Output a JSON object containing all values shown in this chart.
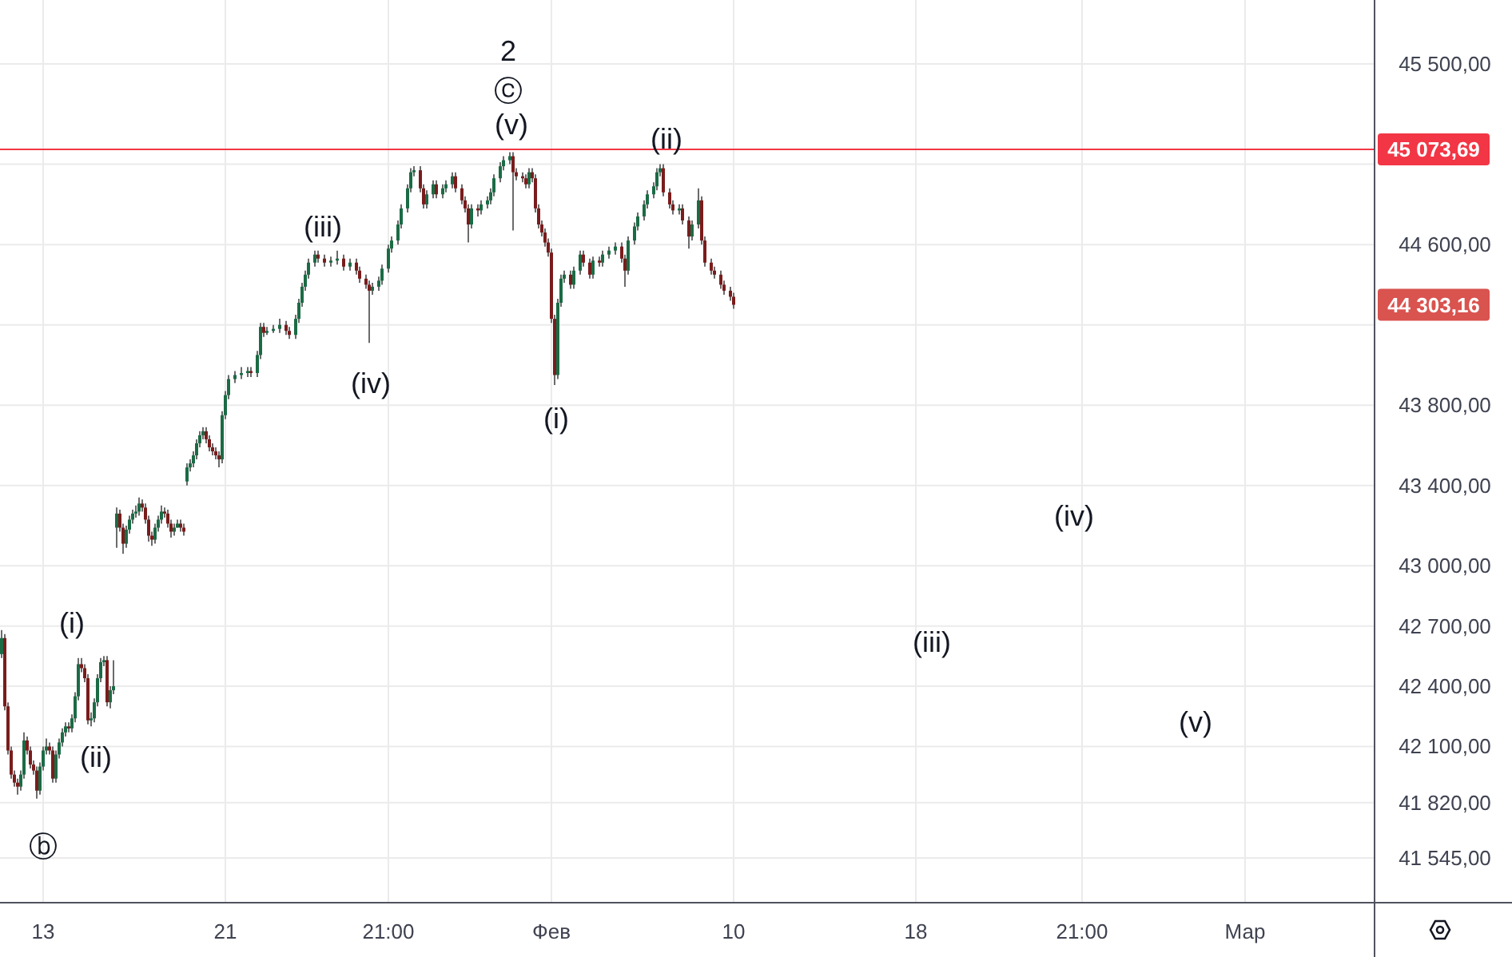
{
  "chart_data": {
    "type": "candlestick",
    "categories": [
      null,
      null,
      null,
      null,
      null,
      null,
      null,
      null,
      null,
      null,
      null,
      null,
      null,
      "13",
      null,
      null,
      null,
      null,
      null,
      null,
      null,
      null,
      null,
      null,
      null,
      null,
      null,
      null,
      null,
      null,
      null,
      null,
      null,
      null,
      null,
      null,
      null,
      null,
      null,
      null,
      null,
      null,
      null,
      null,
      null,
      null,
      null,
      null,
      null,
      null,
      null,
      null,
      null,
      null,
      null,
      null,
      null,
      null,
      null,
      null,
      null,
      null,
      null,
      null,
      null,
      null,
      null,
      null,
      null,
      null,
      "21",
      null,
      null,
      null,
      null,
      null,
      null,
      null,
      null,
      null,
      null,
      null,
      null,
      null,
      null,
      null,
      null,
      null,
      null,
      null,
      null,
      null,
      null,
      null,
      null,
      null,
      null,
      null,
      null,
      null,
      null,
      null,
      null,
      null,
      null,
      null,
      null,
      null,
      null,
      null,
      null,
      null,
      null,
      null,
      null,
      null,
      null,
      null,
      null,
      null,
      null,
      "21:00",
      null,
      null,
      null,
      null,
      null,
      null,
      null,
      null,
      null,
      null,
      null,
      null,
      null,
      null,
      null,
      null,
      null,
      null,
      null,
      null,
      null,
      null,
      null,
      null,
      null,
      null,
      null,
      null,
      null,
      null,
      null,
      null,
      null,
      null,
      null,
      null,
      null,
      null,
      null,
      null,
      null,
      null,
      null,
      null,
      null,
      null,
      null,
      null,
      null,
      null,
      "Фев",
      null,
      null,
      null,
      null,
      null,
      null,
      null,
      null,
      null,
      null,
      null,
      null,
      null,
      null,
      null,
      null,
      null,
      null,
      null,
      null,
      null,
      null,
      null,
      null,
      null,
      null,
      null,
      null,
      null,
      null,
      null,
      null,
      null,
      null,
      null,
      null,
      null,
      null,
      null,
      null,
      null,
      null,
      null,
      null,
      null,
      null,
      null,
      null,
      null,
      null,
      null,
      null,
      null,
      null,
      null,
      null,
      "10",
      null,
      null,
      null,
      null,
      null,
      null,
      null,
      null,
      null,
      null,
      null,
      null,
      null,
      null,
      null,
      null,
      null,
      null,
      null,
      null,
      null,
      null,
      null,
      null,
      null,
      null,
      null,
      null,
      null,
      null,
      null,
      null,
      null,
      null,
      null,
      null,
      null,
      null,
      null,
      null,
      null,
      null,
      null,
      null,
      null,
      null,
      null,
      null,
      null,
      null,
      null,
      null,
      null,
      null,
      null,
      null,
      "18",
      null,
      null,
      null,
      null,
      null,
      null,
      null,
      null,
      null,
      null,
      null,
      null,
      null,
      null,
      null,
      null,
      null,
      null,
      null,
      null,
      null,
      null,
      null,
      null,
      null,
      null,
      null,
      null,
      null,
      null,
      null,
      null,
      null,
      null,
      null,
      null,
      null,
      null,
      null,
      null,
      null,
      null,
      null,
      null,
      null,
      null,
      null,
      null,
      null,
      null,
      null,
      "21:00",
      null,
      null,
      null,
      null,
      null,
      null,
      null,
      null,
      null,
      null,
      null,
      null,
      null,
      null,
      null,
      null,
      null,
      null,
      null,
      null,
      null,
      null,
      null,
      null,
      null,
      null,
      null,
      null,
      null,
      null,
      null,
      null,
      null,
      null,
      null,
      null,
      null,
      null,
      null,
      null,
      null,
      null,
      null,
      null,
      null,
      null,
      null,
      null,
      null,
      null,
      "Мар",
      null,
      null,
      null,
      null,
      null,
      null,
      null,
      null,
      null,
      null,
      null,
      null,
      null,
      null,
      null,
      null,
      null,
      null,
      null,
      null,
      null,
      null,
      null,
      null,
      null,
      null,
      null,
      null,
      null,
      null,
      null,
      null,
      null,
      null,
      null,
      null,
      null,
      null,
      null,
      null
    ],
    "ohlc": [
      [
        42560,
        42680,
        42540,
        42640
      ],
      [
        42640,
        42660,
        42280,
        42300
      ],
      [
        42300,
        42320,
        42060,
        42080
      ],
      [
        42080,
        42100,
        41940,
        41960
      ],
      [
        41960,
        41980,
        41900,
        41920
      ],
      [
        41920,
        41940,
        41860,
        41900
      ],
      [
        41900,
        41980,
        41880,
        41960
      ],
      [
        41960,
        42170,
        41940,
        42130
      ],
      [
        42130,
        42150,
        42060,
        42080
      ],
      [
        42080,
        42100,
        41990,
        42010
      ],
      [
        42010,
        42030,
        41960,
        41980
      ],
      [
        41980,
        42000,
        41840,
        41880
      ],
      [
        41880,
        42020,
        41860,
        42000
      ],
      [
        42000,
        42100,
        41980,
        42080
      ],
      [
        42080,
        42140,
        42060,
        42100
      ],
      [
        42100,
        42120,
        42060,
        42080
      ],
      [
        42080,
        42100,
        41920,
        41940
      ],
      [
        41940,
        42080,
        41920,
        42060
      ],
      [
        42060,
        42140,
        42040,
        42120
      ],
      [
        42120,
        42190,
        42100,
        42170
      ],
      [
        42170,
        42220,
        42150,
        42200
      ],
      [
        42200,
        42220,
        42170,
        42190
      ],
      [
        42190,
        42260,
        42170,
        42240
      ],
      [
        42240,
        42370,
        42220,
        42350
      ],
      [
        42350,
        42540,
        42330,
        42510
      ],
      [
        42510,
        42540,
        42470,
        42490
      ],
      [
        42490,
        42510,
        42420,
        42440
      ],
      [
        42440,
        42460,
        42210,
        42230
      ],
      [
        42230,
        42270,
        42200,
        42240
      ],
      [
        42240,
        42340,
        42220,
        42320
      ],
      [
        42320,
        42460,
        42300,
        42440
      ],
      [
        42440,
        42540,
        42420,
        42520
      ],
      [
        42520,
        42550,
        42500,
        42530
      ],
      [
        42530,
        42550,
        42300,
        42320
      ],
      [
        42320,
        42400,
        42290,
        42380
      ],
      [
        42380,
        42530,
        42360,
        42400
      ],
      [
        43190,
        43290,
        43090,
        43260
      ],
      [
        43260,
        43280,
        43170,
        43190
      ],
      [
        43190,
        43210,
        43060,
        43110
      ],
      [
        43110,
        43200,
        43090,
        43180
      ],
      [
        43180,
        43250,
        43160,
        43230
      ],
      [
        43230,
        43280,
        43210,
        43260
      ],
      [
        43260,
        43300,
        43240,
        43270
      ],
      [
        43270,
        43340,
        43250,
        43310
      ],
      [
        43310,
        43330,
        43270,
        43290
      ],
      [
        43290,
        43310,
        43210,
        43230
      ],
      [
        43230,
        43250,
        43120,
        43150
      ],
      [
        43150,
        43170,
        43100,
        43130
      ],
      [
        43130,
        43210,
        43110,
        43190
      ],
      [
        43190,
        43250,
        43170,
        43230
      ],
      [
        43230,
        43300,
        43210,
        43270
      ],
      [
        43270,
        43290,
        43240,
        43260
      ],
      [
        43260,
        43280,
        43190,
        43210
      ],
      [
        43210,
        43230,
        43140,
        43170
      ],
      [
        43170,
        43210,
        43150,
        43190
      ],
      [
        43190,
        43230,
        43190,
        43210
      ],
      [
        43210,
        43230,
        43170,
        43190
      ],
      [
        43190,
        43210,
        43150,
        43170
      ],
      [
        43420,
        43510,
        43400,
        43490
      ],
      [
        43490,
        43530,
        43470,
        43510
      ],
      [
        43510,
        43570,
        43490,
        43550
      ],
      [
        43550,
        43630,
        43530,
        43610
      ],
      [
        43610,
        43670,
        43590,
        43650
      ],
      [
        43650,
        43690,
        43630,
        43670
      ],
      [
        43670,
        43690,
        43610,
        43630
      ],
      [
        43630,
        43650,
        43570,
        43590
      ],
      [
        43590,
        43610,
        43550,
        43570
      ],
      [
        43570,
        43590,
        43530,
        43550
      ],
      [
        43550,
        43570,
        43490,
        43530
      ],
      [
        43530,
        43770,
        43510,
        43750
      ],
      [
        43750,
        43870,
        43730,
        43850
      ],
      [
        43850,
        43950,
        43830,
        43930
      ],
      null,
      [
        43930,
        43970,
        43910,
        43950
      ],
      null,
      [
        43950,
        43990,
        43930,
        43960
      ],
      null,
      [
        43960,
        43990,
        43940,
        43970
      ],
      [
        43970,
        43990,
        43940,
        43960
      ],
      null,
      [
        43960,
        44070,
        43940,
        44050
      ],
      [
        44050,
        44210,
        44030,
        44190
      ],
      [
        44190,
        44210,
        44140,
        44160
      ],
      [
        44160,
        44190,
        44150,
        44170
      ],
      null,
      [
        44170,
        44200,
        44160,
        44180
      ],
      null,
      [
        44180,
        44230,
        44160,
        44200
      ],
      null,
      [
        44200,
        44220,
        44150,
        44170
      ],
      [
        44170,
        44190,
        44130,
        44150
      ],
      null,
      [
        44150,
        44250,
        44130,
        44230
      ],
      [
        44230,
        44330,
        44210,
        44310
      ],
      [
        44310,
        44410,
        44290,
        44390
      ],
      [
        44390,
        44470,
        44370,
        44450
      ],
      [
        44450,
        44530,
        44430,
        44510
      ],
      null,
      [
        44510,
        44570,
        44490,
        44550
      ],
      [
        44550,
        44570,
        44510,
        44530
      ],
      null,
      [
        44530,
        44550,
        44490,
        44510
      ],
      null,
      [
        44510,
        44540,
        44490,
        44520
      ],
      null,
      [
        44520,
        44570,
        44500,
        44530
      ],
      null,
      [
        44530,
        44550,
        44470,
        44490
      ],
      null,
      [
        44490,
        44530,
        44470,
        44510
      ],
      null,
      [
        44510,
        44530,
        44450,
        44470
      ],
      [
        44470,
        44490,
        44410,
        44430
      ],
      null,
      [
        44430,
        44450,
        44380,
        44400
      ],
      [
        44400,
        44420,
        44110,
        44370
      ],
      [
        44370,
        44410,
        44350,
        44390
      ],
      null,
      [
        44390,
        44440,
        44370,
        44420
      ],
      [
        44420,
        44500,
        44400,
        44480
      ],
      null,
      [
        44480,
        44600,
        44460,
        44580
      ],
      [
        44580,
        44640,
        44560,
        44620
      ],
      null,
      [
        44620,
        44720,
        44600,
        44700
      ],
      [
        44700,
        44800,
        44680,
        44780
      ],
      null,
      [
        44780,
        44900,
        44760,
        44880
      ],
      [
        44880,
        44980,
        44860,
        44960
      ],
      [
        44960,
        44990,
        44940,
        44970
      ],
      null,
      [
        44970,
        44990,
        44860,
        44880
      ],
      [
        44880,
        44900,
        44780,
        44800
      ],
      [
        44800,
        44870,
        44780,
        44850
      ],
      null,
      [
        44850,
        44920,
        44830,
        44900
      ],
      [
        44900,
        44920,
        44830,
        44850
      ],
      null,
      [
        44850,
        44900,
        44830,
        44880
      ],
      [
        44880,
        44920,
        44860,
        44900
      ],
      null,
      [
        44900,
        44960,
        44880,
        44940
      ],
      [
        44940,
        44960,
        44860,
        44880
      ],
      null,
      [
        44880,
        44900,
        44800,
        44820
      ],
      [
        44820,
        44840,
        44760,
        44780
      ],
      [
        44780,
        44800,
        44610,
        44700
      ],
      [
        44700,
        44800,
        44680,
        44780
      ],
      null,
      [
        44780,
        44800,
        44740,
        44770
      ],
      [
        44770,
        44820,
        44750,
        44800
      ],
      null,
      [
        44800,
        44840,
        44780,
        44820
      ],
      [
        44820,
        44880,
        44800,
        44860
      ],
      [
        44860,
        44950,
        44840,
        44930
      ],
      null,
      [
        44930,
        45010,
        44910,
        44990
      ],
      [
        44990,
        45040,
        44970,
        45020
      ],
      null,
      [
        45020,
        45060,
        45000,
        45040
      ],
      [
        45040,
        45060,
        44670,
        44960
      ],
      [
        44960,
        44980,
        44920,
        44940
      ],
      null,
      [
        44940,
        44960,
        44910,
        44930
      ],
      [
        44930,
        44950,
        44880,
        44900
      ],
      [
        44900,
        44980,
        44880,
        44960
      ],
      [
        44960,
        44980,
        44910,
        44930
      ],
      [
        44930,
        44950,
        44760,
        44780
      ],
      [
        44780,
        44800,
        44680,
        44700
      ],
      [
        44700,
        44720,
        44640,
        44660
      ],
      [
        44660,
        44680,
        44590,
        44610
      ],
      [
        44610,
        44630,
        44540,
        44560
      ],
      [
        44560,
        44580,
        44210,
        44230
      ],
      [
        44230,
        44250,
        43900,
        43950
      ],
      [
        43950,
        44330,
        43930,
        44310
      ],
      [
        44310,
        44450,
        44290,
        44430
      ],
      [
        44430,
        44470,
        44410,
        44450
      ],
      null,
      [
        44450,
        44470,
        44380,
        44400
      ],
      [
        44400,
        44490,
        44380,
        44470
      ],
      null,
      [
        44470,
        44570,
        44450,
        44550
      ],
      [
        44550,
        44570,
        44490,
        44510
      ],
      null,
      [
        44510,
        44530,
        44430,
        44450
      ],
      [
        44450,
        44540,
        44430,
        44520
      ],
      null,
      [
        44520,
        44540,
        44490,
        44510
      ],
      [
        44510,
        44570,
        44490,
        44550
      ],
      null,
      [
        44550,
        44590,
        44530,
        44570
      ],
      null,
      [
        44570,
        44610,
        44550,
        44590
      ],
      null,
      [
        44590,
        44610,
        44510,
        44530
      ],
      [
        44530,
        44550,
        44390,
        44470
      ],
      [
        44470,
        44640,
        44450,
        44620
      ],
      null,
      [
        44620,
        44710,
        44600,
        44690
      ],
      [
        44690,
        44760,
        44670,
        44740
      ],
      null,
      [
        44740,
        44820,
        44720,
        44800
      ],
      [
        44800,
        44870,
        44780,
        44850
      ],
      null,
      [
        44850,
        44910,
        44830,
        44890
      ],
      [
        44890,
        44980,
        44870,
        44960
      ],
      [
        44960,
        45000,
        44940,
        44980
      ],
      [
        44980,
        45000,
        44840,
        44860
      ],
      null,
      [
        44860,
        44880,
        44780,
        44800
      ],
      [
        44800,
        44820,
        44750,
        44770
      ],
      null,
      [
        44770,
        44800,
        44750,
        44780
      ],
      [
        44780,
        44800,
        44700,
        44720
      ],
      null,
      [
        44720,
        44740,
        44580,
        44640
      ],
      [
        44640,
        44720,
        44620,
        44700
      ],
      null,
      [
        44700,
        44880,
        44680,
        44820
      ],
      [
        44820,
        44840,
        44600,
        44620
      ],
      [
        44620,
        44640,
        44490,
        44510
      ],
      null,
      [
        44510,
        44530,
        44450,
        44470
      ],
      [
        44470,
        44490,
        44430,
        44450
      ],
      null,
      [
        44450,
        44470,
        44380,
        44400
      ],
      [
        44400,
        44420,
        44350,
        44370
      ],
      null,
      [
        44370,
        44390,
        44320,
        44340
      ],
      [
        44340,
        44360,
        44280,
        44300
      ],
      null,
      null,
      null,
      null,
      null,
      null,
      null,
      null,
      null,
      null,
      null,
      null,
      null,
      null,
      null,
      null,
      null,
      null,
      null,
      null,
      null,
      null,
      null,
      null,
      null,
      null,
      null,
      null,
      null,
      null,
      null,
      null,
      null,
      null,
      null,
      null,
      null,
      null,
      null,
      null,
      null,
      null,
      null,
      null,
      null,
      null,
      null,
      null,
      null,
      null,
      null,
      null,
      null,
      null,
      null,
      null,
      null,
      null,
      null,
      null,
      null,
      null,
      null,
      null,
      null,
      null,
      null,
      null,
      null,
      null,
      null,
      null,
      null,
      null,
      null,
      null,
      null,
      null,
      null,
      null,
      null,
      null,
      null,
      null,
      null,
      null,
      null,
      null,
      null,
      null,
      null,
      null,
      null,
      null,
      null,
      null,
      null,
      null,
      null,
      null,
      null,
      null,
      null,
      null,
      null,
      null,
      null,
      null,
      null,
      null,
      null,
      null,
      null,
      null,
      null,
      null,
      null,
      null,
      null,
      null,
      null,
      null,
      null,
      null,
      null,
      null,
      null,
      null,
      null,
      null,
      null,
      null,
      null,
      null,
      null,
      null,
      null,
      null,
      null,
      null,
      null,
      null,
      null,
      null,
      null,
      null,
      null,
      null,
      null,
      null,
      null,
      null,
      null,
      null,
      null,
      null,
      null,
      null,
      null,
      null,
      null,
      null,
      null,
      null,
      null,
      null,
      null,
      null,
      null,
      null,
      null,
      null,
      null,
      null,
      null,
      null,
      null,
      null,
      null,
      null,
      null,
      null,
      null,
      null,
      null,
      null,
      null,
      null,
      null,
      null,
      null,
      null,
      null,
      null,
      null,
      null,
      null,
      null,
      null,
      null
    ],
    "ylim": [
      41322,
      45818
    ],
    "yticks": [
      {
        "value": 41545,
        "label": "41 545,00"
      },
      {
        "value": 41820,
        "label": "41 820,00"
      },
      {
        "value": 42100,
        "label": "42 100,00"
      },
      {
        "value": 42400,
        "label": "42 400,00"
      },
      {
        "value": 42700,
        "label": "42 700,00"
      },
      {
        "value": 43000,
        "label": "43 000,00"
      },
      {
        "value": 43400,
        "label": "43 400,00"
      },
      {
        "value": 43800,
        "label": "43 800,00"
      },
      {
        "value": 44200,
        "label": null
      },
      {
        "value": 44600,
        "label": "44 600,00"
      },
      {
        "value": 45000,
        "label": null
      },
      {
        "value": 45500,
        "label": "45 500,00"
      }
    ],
    "grid": true,
    "ref_lines": [
      {
        "axis": "y",
        "value": 45073.69,
        "label": "45 073,69",
        "color": "#f23645"
      }
    ],
    "annotations": [
      "ⓑ",
      "(i)",
      "(ii)",
      "(iii)",
      "(iv)",
      "(v)",
      "ⓒ",
      "2",
      "(i)",
      "(ii)",
      "(iii)",
      "(iv)",
      "(v)",
      "44 303,16"
    ]
  }
}
